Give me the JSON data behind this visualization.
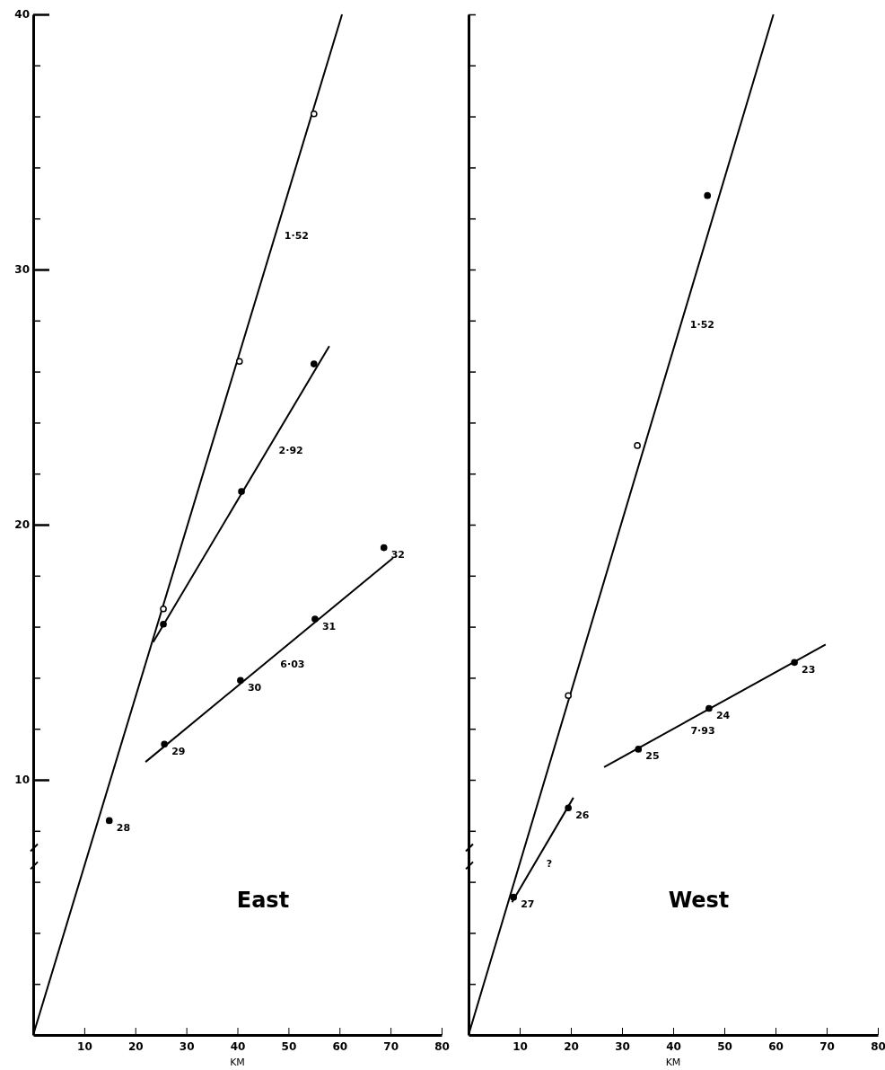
{
  "chart_data": [
    {
      "type": "scatter",
      "title": "East",
      "xlabel": "KM",
      "marker": "circle",
      "xlim": [
        0,
        80
      ],
      "ylim": [
        0,
        40
      ],
      "xticks": [
        10,
        20,
        30,
        40,
        50,
        60,
        70,
        80
      ],
      "yticks": [
        {
          "value": 2,
          "label": null
        },
        {
          "value": 4,
          "label": null
        },
        {
          "value": 6,
          "label": null
        },
        {
          "value": 8,
          "label": null
        },
        10,
        {
          "value": 12,
          "label": null
        },
        {
          "value": 14,
          "label": null
        },
        {
          "value": 16,
          "label": null
        },
        {
          "value": 18,
          "label": null
        },
        20,
        {
          "value": 22,
          "label": null
        },
        {
          "value": 24,
          "label": null
        },
        {
          "value": 26,
          "label": null
        },
        {
          "value": 28,
          "label": null
        },
        30,
        {
          "value": 32,
          "label": null
        },
        {
          "value": 34,
          "label": null
        },
        {
          "value": 36,
          "label": null
        },
        {
          "value": 38,
          "label": null
        },
        40
      ],
      "series": [
        {
          "type": "line",
          "marker": "none",
          "color": "#000000",
          "x": [
            0,
            60.5
          ],
          "values": [
            0,
            40
          ]
        },
        {
          "type": "line",
          "marker": "none",
          "color": "#000000",
          "x": [
            23.5,
            58
          ],
          "values": [
            15.4,
            27
          ]
        },
        {
          "type": "line",
          "marker": "none",
          "color": "#000000",
          "x": [
            22,
            70.5
          ],
          "values": [
            10.7,
            18.7
          ]
        },
        {
          "color": "#ffffff",
          "x": [
            25.5,
            40.4,
            55
          ],
          "values": [
            16.7,
            26.4,
            36.1
          ]
        },
        {
          "color": "#000000",
          "x": [
            25.5,
            40.8,
            55
          ],
          "values": [
            16.1,
            21.3,
            26.3
          ]
        },
        {
          "color": "#000000",
          "x": [
            14.9,
            25.7,
            40.6,
            55.2,
            68.7
          ],
          "values": [
            8.4,
            11.4,
            13.9,
            16.3,
            19.1
          ]
        }
      ],
      "annotations": [
        {
          "text": "1·52",
          "x": 47.8,
          "y": 31.6
        },
        {
          "text": "2·92",
          "x": 46.7,
          "y": 23.2
        },
        {
          "text": "6·03",
          "x": 47,
          "y": 14.8
        },
        {
          "text": "28",
          "x": 14.9,
          "y": 8.4
        },
        {
          "text": "29",
          "x": 25.7,
          "y": 11.4
        },
        {
          "text": "30",
          "x": 40.6,
          "y": 13.9
        },
        {
          "text": "31",
          "x": 55.2,
          "y": 16.3
        },
        {
          "text": "32",
          "x": 68.7,
          "y": 19.1
        }
      ]
    },
    {
      "type": "scatter",
      "title": "West",
      "xlabel": "KM",
      "marker": "circle",
      "tick_labels": "x",
      "xlim": [
        0,
        80
      ],
      "ylim": [
        0,
        40
      ],
      "xticks": [
        10,
        20,
        30,
        40,
        50,
        60,
        70,
        80
      ],
      "yticks": [
        {
          "value": 2,
          "label": null
        },
        {
          "value": 4,
          "label": null
        },
        {
          "value": 6,
          "label": null
        },
        {
          "value": 8,
          "label": null
        },
        {
          "value": 10,
          "label": null
        },
        {
          "value": 12,
          "label": null
        },
        {
          "value": 14,
          "label": null
        },
        {
          "value": 16,
          "label": null
        },
        {
          "value": 18,
          "label": null
        },
        {
          "value": 20,
          "label": null
        },
        {
          "value": 22,
          "label": null
        },
        {
          "value": 24,
          "label": null
        },
        {
          "value": 26,
          "label": null
        },
        {
          "value": 28,
          "label": null
        },
        {
          "value": 30,
          "label": null
        },
        {
          "value": 32,
          "label": null
        },
        {
          "value": 34,
          "label": null
        },
        {
          "value": 36,
          "label": null
        },
        {
          "value": 38,
          "label": null
        },
        {
          "value": 40,
          "label": null
        }
      ],
      "series": [
        {
          "type": "line",
          "marker": "none",
          "color": "#000000",
          "x": [
            0,
            59.6
          ],
          "values": [
            0,
            40
          ]
        },
        {
          "type": "line",
          "marker": "none",
          "color": "#000000",
          "x": [
            8.5,
            20.5
          ],
          "values": [
            5.2,
            9.3
          ]
        },
        {
          "type": "line",
          "marker": "none",
          "color": "#000000",
          "x": [
            26.5,
            69.8
          ],
          "values": [
            10.5,
            15.3
          ]
        },
        {
          "color": "#ffffff",
          "x": [
            19.5,
            33
          ],
          "values": [
            13.3,
            23.1
          ]
        },
        {
          "color": "#000000",
          "x": [
            8.8,
            19.5,
            33.2,
            46.7,
            47,
            63.7
          ],
          "values": [
            5.4,
            8.9,
            11.2,
            32.9,
            12.8,
            14.6
          ]
        }
      ],
      "annotations": [
        {
          "text": "1·52",
          "x": 41.9,
          "y": 28.1
        },
        {
          "text": "7·93",
          "x": 42,
          "y": 12.2
        },
        {
          "text": "?",
          "x": 13.8,
          "y": 7.0
        },
        {
          "text": "23",
          "x": 63.7,
          "y": 14.6
        },
        {
          "text": "24",
          "x": 47,
          "y": 12.8
        },
        {
          "text": "25",
          "x": 33.2,
          "y": 11.2
        },
        {
          "text": "26",
          "x": 19.5,
          "y": 8.9
        },
        {
          "text": "27",
          "x": 8.8,
          "y": 5.4
        }
      ]
    }
  ]
}
